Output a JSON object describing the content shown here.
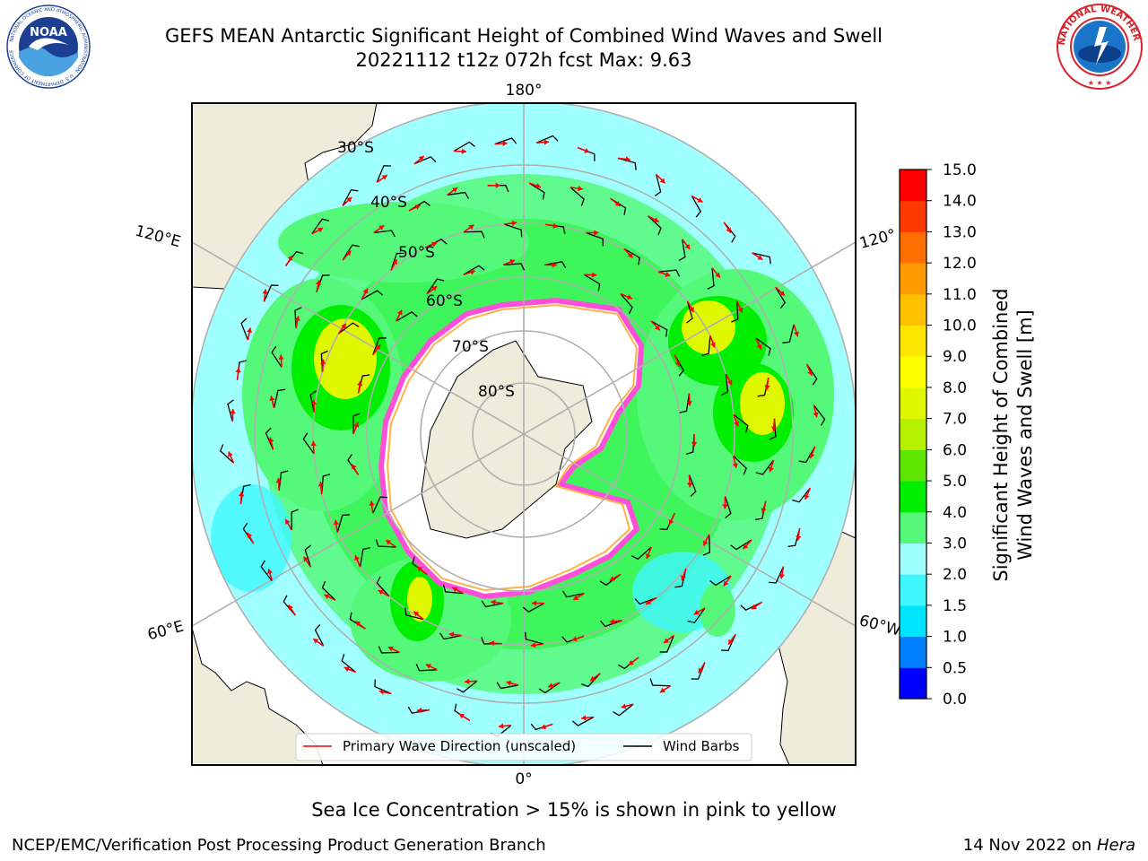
{
  "title": {
    "line1": "GEFS MEAN Antarctic Significant Height of Combined Wind Waves and Swell",
    "line2": "20221112 t12z 072h fcst   Max: 9.63"
  },
  "logos": {
    "noaa": {
      "text": "NOAA",
      "ring": "NATIONAL OCEANIC AND ATMOSPHERIC ADMINISTRATION · U.S. DEPARTMENT OF COMMERCE"
    },
    "nws": {
      "ring": "NATIONAL WEATHER SERVICE"
    }
  },
  "map": {
    "projection": "south-polar-stereographic",
    "longitude_labels": {
      "top": "180°",
      "bottom": "0°",
      "upper_left": "120°E",
      "lower_left": "60°E",
      "upper_right": "120°",
      "lower_right": "60°W"
    },
    "latitude_labels": [
      "30°S",
      "40°S",
      "50°S",
      "60°S",
      "70°S",
      "80°S"
    ],
    "gridlines": true
  },
  "legend": {
    "wave_direction": "Primary Wave Direction (unscaled)",
    "wind_barbs": "Wind Barbs",
    "placement": "bottom-center"
  },
  "colorbar": {
    "label_line1": "Significant Height of Combined",
    "label_line2": "Wind Waves and Swell [m]",
    "ticks": [
      "0.0",
      "0.5",
      "1.0",
      "1.5",
      "2.0",
      "3.0",
      "4.0",
      "5.0",
      "6.0",
      "7.0",
      "8.0",
      "9.0",
      "10.0",
      "11.0",
      "12.0",
      "13.0",
      "14.0",
      "15.0"
    ],
    "colors": [
      "#0000ff",
      "#0080ff",
      "#00e5ff",
      "#3ff7ff",
      "#a0ffff",
      "#55f97a",
      "#00ee00",
      "#5fe600",
      "#b4f000",
      "#dff700",
      "#ffff00",
      "#ffe600",
      "#ffc000",
      "#ff9a00",
      "#ff6e00",
      "#ff3a00",
      "#ff0000"
    ]
  },
  "colors": {
    "land": "#efecdc",
    "ice": "#ffffff",
    "ice_edge": "#ff4fd8",
    "arrows": "#ff0000",
    "barbs": "#000000"
  },
  "footer": {
    "note": "Sea Ice Concentration > 15% is shown in pink to yellow",
    "branch": "NCEP/EMC/Verification Post Processing Product Generation Branch",
    "date": "14 Nov 2022 on",
    "machine": "Hera"
  }
}
